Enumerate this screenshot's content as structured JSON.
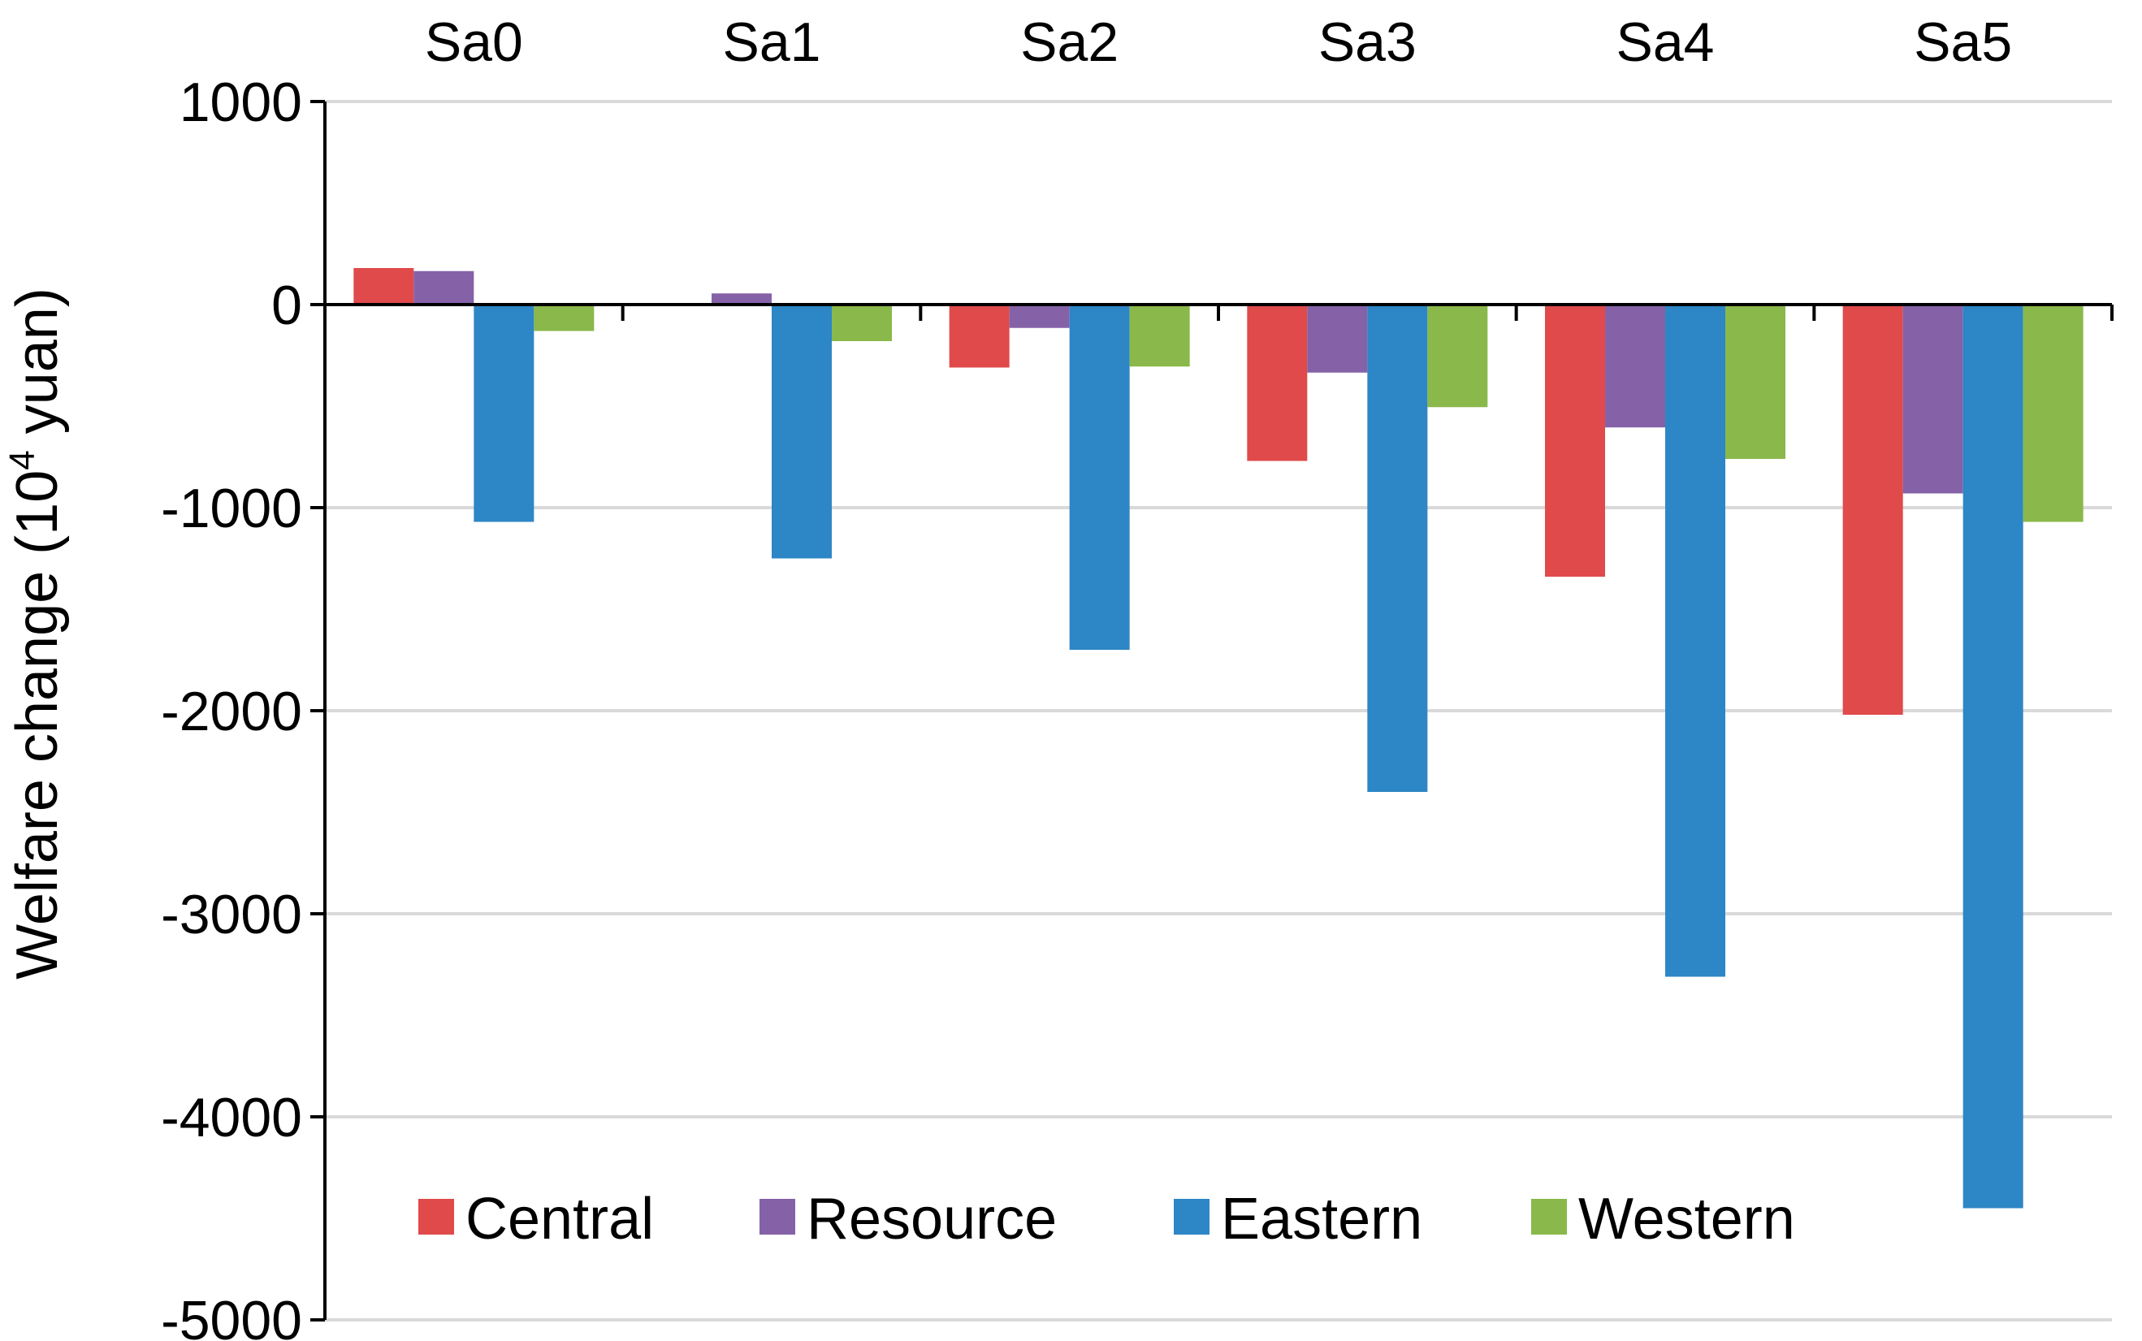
{
  "chart_data": {
    "type": "bar",
    "title": "",
    "xlabel": "",
    "ylabel": {
      "prefix": "Welfare change (10",
      "superscript": "4",
      "suffix": " yuan)"
    },
    "ylim": [
      -5000,
      1000
    ],
    "yticks": [
      1000,
      0,
      -1000,
      -2000,
      -3000,
      -4000,
      -5000
    ],
    "grid": true,
    "categories": [
      "Sa0",
      "Sa1",
      "Sa2",
      "Sa3",
      "Sa4",
      "Sa5"
    ],
    "category_axis_position": "top",
    "series": [
      {
        "name": "Central",
        "color": "#e04a4a",
        "values": [
          180,
          5,
          -310,
          -770,
          -1340,
          -2020
        ]
      },
      {
        "name": "Resource",
        "color": "#8562a8",
        "values": [
          165,
          55,
          -115,
          -335,
          -605,
          -930
        ]
      },
      {
        "name": "Eastern",
        "color": "#2d86c5",
        "values": [
          -1070,
          -1250,
          -1700,
          -2400,
          -3310,
          -4450
        ]
      },
      {
        "name": "Western",
        "color": "#8ab84a",
        "values": [
          -130,
          -180,
          -305,
          -505,
          -760,
          -1070
        ]
      }
    ],
    "legend_position": "bottom-center"
  }
}
